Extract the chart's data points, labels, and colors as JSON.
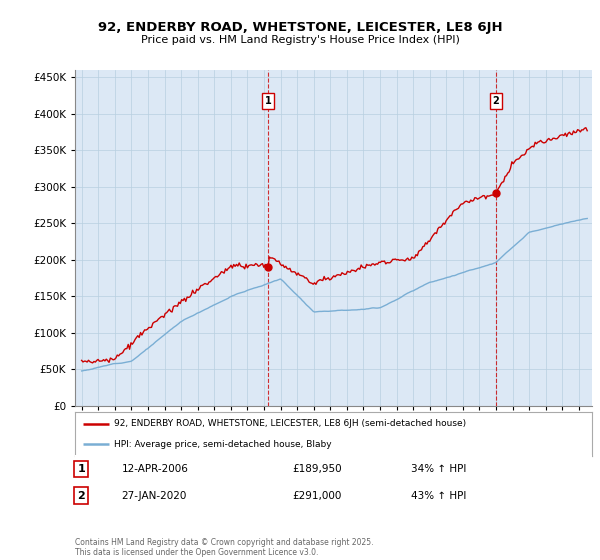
{
  "title": "92, ENDERBY ROAD, WHETSTONE, LEICESTER, LE8 6JH",
  "subtitle": "Price paid vs. HM Land Registry's House Price Index (HPI)",
  "background_color": "#ffffff",
  "plot_bg_color": "#dce8f5",
  "grid_color": "#b8cfe0",
  "sale1_date": "12-APR-2006",
  "sale1_price": 189950,
  "sale1_pct": "34%",
  "sale2_date": "27-JAN-2020",
  "sale2_price": 291000,
  "sale2_pct": "43%",
  "legend_label1": "92, ENDERBY ROAD, WHETSTONE, LEICESTER, LE8 6JH (semi-detached house)",
  "legend_label2": "HPI: Average price, semi-detached house, Blaby",
  "footer": "Contains HM Land Registry data © Crown copyright and database right 2025.\nThis data is licensed under the Open Government Licence v3.0.",
  "hpi_color": "#7aaed4",
  "price_color": "#cc0000",
  "vline_color": "#cc0000",
  "ylim": [
    0,
    460000
  ],
  "yticks": [
    0,
    50000,
    100000,
    150000,
    200000,
    250000,
    300000,
    350000,
    400000,
    450000
  ],
  "sale1_year": 2006.25,
  "sale2_year": 2020.0
}
